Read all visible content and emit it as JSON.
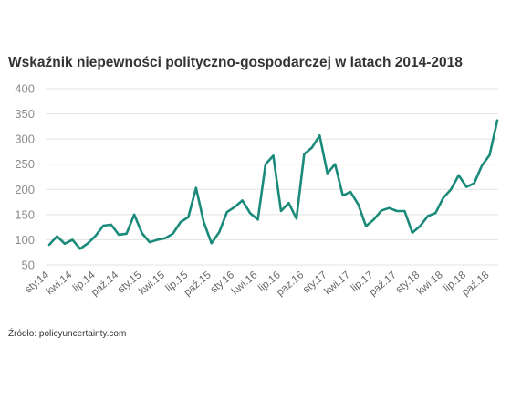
{
  "chart_data": {
    "type": "line",
    "title": "Wskaźnik niepewności polityczno-gospodarczej w latach 2014-2018",
    "source": "Źródło: policyuncertainty.com",
    "xlabel": "",
    "ylabel": "",
    "ylim": [
      50,
      400
    ],
    "yticks": [
      50,
      100,
      150,
      200,
      250,
      300,
      350,
      400
    ],
    "grid": true,
    "legend": "none",
    "line_color": "#1a8a7a",
    "x_tick_labels": [
      "sty.14",
      "kwi.14",
      "lip.14",
      "paź.14",
      "sty.15",
      "kwi.15",
      "lip.15",
      "paź.15",
      "sty.16",
      "kwi.16",
      "lip.16",
      "paź.16",
      "sty.17",
      "kwi.17",
      "lip.17",
      "paź.17",
      "sty.18",
      "kwi.18",
      "lip.18",
      "paź.18"
    ],
    "series": [
      {
        "values": [
          90,
          107,
          92,
          100,
          82,
          93,
          108,
          128,
          130,
          110,
          112,
          150,
          113,
          95,
          100,
          103,
          112,
          135,
          145,
          203,
          135,
          93,
          115,
          155,
          165,
          178,
          153,
          140,
          250,
          267,
          157,
          173,
          142,
          270,
          283,
          307,
          232,
          250,
          188,
          195,
          170,
          127,
          140,
          158,
          163,
          157,
          157,
          114,
          127,
          147,
          153,
          183,
          200,
          228,
          205,
          212,
          247,
          268,
          337
        ]
      }
    ]
  }
}
